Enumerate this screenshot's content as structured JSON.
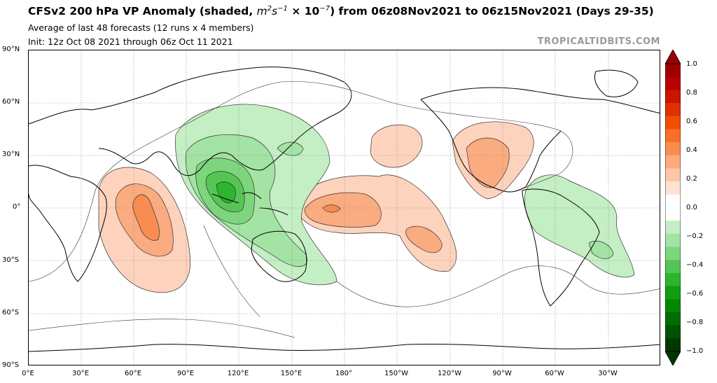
{
  "header": {
    "title_pre": "CFSv2 200 hPa VP Anomaly (shaded, ",
    "units_base": "m",
    "units_exp1": "2",
    "units_mid": "s",
    "units_exp2": "−1",
    "units_times": " × 10",
    "units_exp3": "−7",
    "title_post": ") from 06z08Nov2021 to 06z15Nov2021 (Days 29-35)",
    "subtitle1": "Average of last 48 forecasts (12 runs x 4 members)",
    "subtitle2": "Init: 12z Oct 08 2021 through 06z Oct 11 2021",
    "brand": "TROPICALTIDBITS.COM"
  },
  "map": {
    "lat_labels": [
      "90°N",
      "60°N",
      "30°N",
      "0°",
      "30°S",
      "60°S",
      "90°S"
    ],
    "lon_labels": [
      "0°E",
      "30°E",
      "60°E",
      "90°E",
      "120°E",
      "150°E",
      "180°",
      "150°W",
      "120°W",
      "90°W",
      "60°W",
      "30°W"
    ],
    "lon_range": [
      0,
      360
    ],
    "lat_range": [
      -90,
      90
    ],
    "grid": true
  },
  "colorbar": {
    "labels": [
      "1.0",
      "0.8",
      "0.6",
      "0.4",
      "0.2",
      "0.0",
      "−0.2",
      "−0.4",
      "−0.6",
      "−0.8",
      "−1.0"
    ],
    "colors": [
      "#9e0000",
      "#b70000",
      "#cc1400",
      "#e03100",
      "#f05000",
      "#f96e28",
      "#fb8c50",
      "#fcaa7c",
      "#fdc7a8",
      "#fde2d2",
      "#ffffff",
      "#ffffff",
      "#c4eec4",
      "#a3e3a3",
      "#7dd67d",
      "#55c655",
      "#2eb52e",
      "#0fa00f",
      "#048804",
      "#006d00",
      "#005200",
      "#003800"
    ]
  }
}
